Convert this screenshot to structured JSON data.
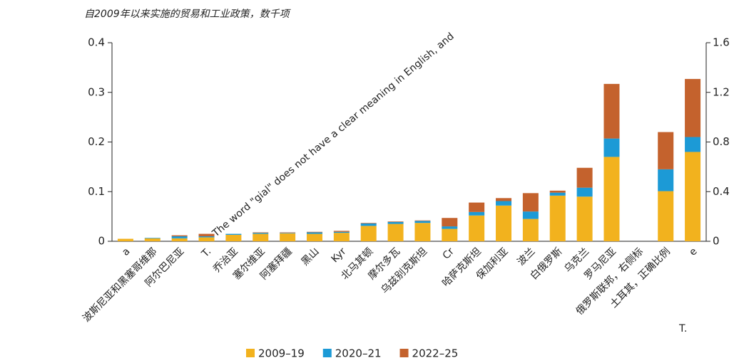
{
  "chart_data": {
    "type": "stacked_bar",
    "title": "自2009年以来实施的贸易和工业政策，数千项",
    "annotations": [
      "The word \"gial\" does not have a clear meaning in English, and",
      "T."
    ],
    "categories": [
      "a",
      "波斯尼亚和黑塞哥维那",
      "阿尔巴尼亚",
      "T.",
      "乔治亚",
      "塞尔维亚",
      "阿塞拜疆",
      "黑山",
      "Kyr",
      "北马其顿",
      "摩尔多瓦",
      "乌兹别克斯坦",
      "Cr",
      "哈萨克斯坦",
      "保加利亚",
      "波兰",
      "白俄罗斯",
      "乌克兰",
      "罗马尼亚",
      "俄罗斯联邦，右侧标",
      "土耳其，正确比例",
      "e"
    ],
    "series": [
      {
        "name": "2009–19",
        "color": "#f2b21e",
        "values": [
          0.005,
          0.006,
          0.006,
          0.008,
          0.013,
          0.015,
          0.016,
          0.015,
          0.017,
          0.031,
          0.035,
          0.037,
          0.025,
          0.052,
          0.072,
          0.045,
          0.092,
          0.09,
          0.17,
          null,
          0.101,
          0.18
        ]
      },
      {
        "name": "2020–21",
        "color": "#1c9ad6",
        "values": [
          0,
          0.001,
          0.004,
          0.002,
          0.002,
          0.002,
          0.001,
          0.003,
          0.002,
          0.005,
          0.004,
          0.004,
          0.005,
          0.007,
          0.009,
          0.015,
          0.006,
          0.018,
          0.037,
          null,
          0.044,
          0.03
        ]
      },
      {
        "name": "2022–25",
        "color": "#c4622d",
        "values": [
          0,
          0,
          0.002,
          0.005,
          0,
          0.001,
          0.001,
          0.001,
          0.002,
          0.001,
          0.001,
          0.001,
          0.017,
          0.019,
          0.006,
          0.037,
          0.004,
          0.04,
          0.11,
          null,
          0.075,
          0.117
        ]
      }
    ],
    "ylim": [
      0,
      0.4
    ],
    "yticks": [
      0,
      0.1,
      0.2,
      0.3,
      0.4
    ],
    "y2lim": [
      0,
      1.6
    ],
    "y2ticks": [
      0,
      0.4,
      0.8,
      1.2,
      1.6
    ]
  }
}
